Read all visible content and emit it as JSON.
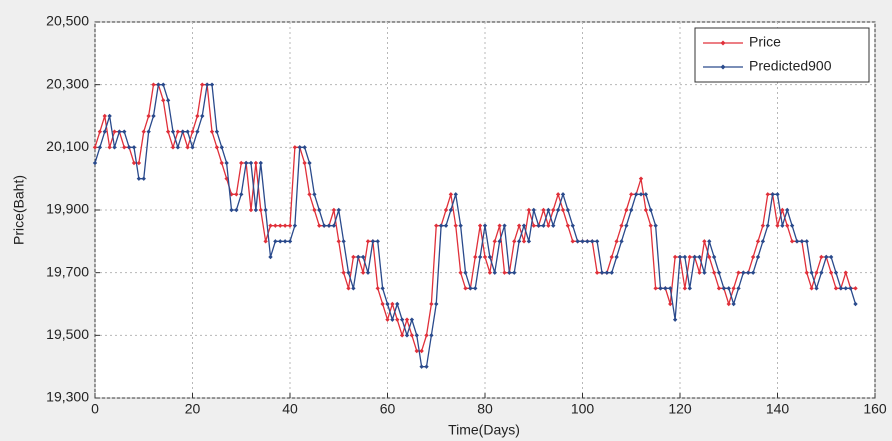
{
  "chart_data": {
    "type": "line",
    "xlabel": "Time(Days)",
    "ylabel": "Price(Baht)",
    "x": [
      0,
      1,
      2,
      3,
      4,
      5,
      6,
      7,
      8,
      9,
      10,
      11,
      12,
      13,
      14,
      15,
      16,
      17,
      18,
      19,
      20,
      21,
      22,
      23,
      24,
      25,
      26,
      27,
      28,
      29,
      30,
      31,
      32,
      33,
      34,
      35,
      36,
      37,
      38,
      39,
      40,
      41,
      42,
      43,
      44,
      45,
      46,
      47,
      48,
      49,
      50,
      51,
      52,
      53,
      54,
      55,
      56,
      57,
      58,
      59,
      60,
      61,
      62,
      63,
      64,
      65,
      66,
      67,
      68,
      69,
      70,
      71,
      72,
      73,
      74,
      75,
      76,
      77,
      78,
      79,
      80,
      81,
      82,
      83,
      84,
      85,
      86,
      87,
      88,
      89,
      90,
      91,
      92,
      93,
      94,
      95,
      96,
      97,
      98,
      99,
      100,
      101,
      102,
      103,
      104,
      105,
      106,
      107,
      108,
      109,
      110,
      111,
      112,
      113,
      114,
      115,
      116,
      117,
      118,
      119,
      120,
      121,
      122,
      123,
      124,
      125,
      126,
      127,
      128,
      129,
      130,
      131,
      132,
      133,
      134,
      135,
      136,
      137,
      138,
      139,
      140,
      141,
      142,
      143,
      144,
      145,
      146,
      147,
      148,
      149,
      150,
      151,
      152,
      153,
      154,
      155,
      156
    ],
    "series": [
      {
        "name": "Price",
        "color": "#e0303a",
        "values": [
          20100,
          20150,
          20200,
          20100,
          20150,
          20150,
          20100,
          20100,
          20050,
          20050,
          20150,
          20200,
          20300,
          20300,
          20250,
          20150,
          20100,
          20150,
          20150,
          20100,
          20150,
          20200,
          20300,
          20300,
          20150,
          20100,
          20050,
          20000,
          19950,
          19950,
          20050,
          20050,
          19900,
          20050,
          19900,
          19800,
          19850,
          19850,
          19850,
          19850,
          19850,
          20100,
          20100,
          20050,
          19950,
          19900,
          19850,
          19850,
          19850,
          19900,
          19800,
          19700,
          19650,
          19750,
          19750,
          19700,
          19800,
          19800,
          19650,
          19600,
          19550,
          19600,
          19550,
          19500,
          19550,
          19500,
          19450,
          19450,
          19500,
          19600,
          19850,
          19850,
          19900,
          19950,
          19850,
          19700,
          19650,
          19650,
          19750,
          19850,
          19750,
          19700,
          19800,
          19850,
          19700,
          19700,
          19800,
          19850,
          19800,
          19900,
          19850,
          19850,
          19900,
          19850,
          19900,
          19950,
          19900,
          19850,
          19800,
          19800,
          19800,
          19800,
          19800,
          19700,
          19700,
          19700,
          19750,
          19800,
          19850,
          19900,
          19950,
          19950,
          20000,
          19900,
          19850,
          19650,
          19650,
          19650,
          19600,
          19750,
          19750,
          19650,
          19750,
          19750,
          19700,
          19800,
          19750,
          19700,
          19650,
          19650,
          19600,
          19650,
          19700,
          19700,
          19700,
          19750,
          19800,
          19850,
          19950,
          19950,
          19850,
          19900,
          19850,
          19800,
          19800,
          19800,
          19700,
          19650,
          19700,
          19750,
          19750,
          19700,
          19650,
          19650,
          19700,
          19650,
          19650
        ]
      },
      {
        "name": "Predicted900",
        "color": "#2a4a8c",
        "values": [
          20050,
          20100,
          20150,
          20200,
          20100,
          20150,
          20150,
          20100,
          20100,
          20000,
          20000,
          20150,
          20200,
          20300,
          20300,
          20250,
          20150,
          20100,
          20150,
          20150,
          20100,
          20150,
          20200,
          20300,
          20300,
          20150,
          20100,
          20050,
          19900,
          19900,
          19950,
          20050,
          20050,
          19900,
          20050,
          19900,
          19750,
          19800,
          19800,
          19800,
          19800,
          19850,
          20100,
          20100,
          20050,
          19950,
          19900,
          19850,
          19850,
          19850,
          19900,
          19800,
          19700,
          19650,
          19750,
          19750,
          19700,
          19800,
          19800,
          19650,
          19600,
          19550,
          19600,
          19550,
          19500,
          19550,
          19500,
          19400,
          19400,
          19500,
          19600,
          19850,
          19850,
          19900,
          19950,
          19850,
          19700,
          19650,
          19650,
          19750,
          19850,
          19750,
          19700,
          19800,
          19850,
          19700,
          19700,
          19800,
          19850,
          19800,
          19900,
          19850,
          19850,
          19900,
          19850,
          19900,
          19950,
          19900,
          19850,
          19800,
          19800,
          19800,
          19800,
          19800,
          19700,
          19700,
          19700,
          19750,
          19800,
          19850,
          19900,
          19950,
          19950,
          19950,
          19900,
          19850,
          19650,
          19650,
          19650,
          19550,
          19750,
          19750,
          19650,
          19750,
          19750,
          19700,
          19800,
          19750,
          19700,
          19650,
          19650,
          19600,
          19650,
          19700,
          19700,
          19700,
          19750,
          19800,
          19850,
          19950,
          19950,
          19850,
          19900,
          19850,
          19800,
          19800,
          19800,
          19700,
          19650,
          19700,
          19750,
          19750,
          19700,
          19650,
          19650,
          19650,
          19600
        ]
      }
    ],
    "xlim": [
      0,
      160
    ],
    "xticks": [
      0,
      20,
      40,
      60,
      80,
      100,
      120,
      140,
      160
    ],
    "ylim": [
      19300,
      20500
    ],
    "yticks": [
      {
        "value": 19300,
        "label": "19,300"
      },
      {
        "value": 19500,
        "label": "19,500"
      },
      {
        "value": 19700,
        "label": "19,700"
      },
      {
        "value": 19900,
        "label": "19,900"
      },
      {
        "value": 20100,
        "label": "20,100"
      },
      {
        "value": 20300,
        "label": "20,300"
      },
      {
        "value": 20500,
        "label": "20,500"
      }
    ],
    "grid": true,
    "legend": "upper right"
  }
}
